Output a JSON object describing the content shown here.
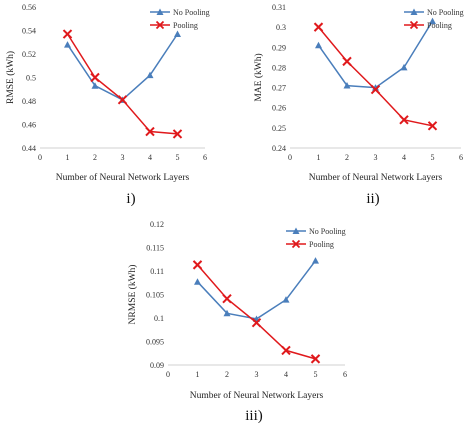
{
  "chart_data": [
    {
      "type": "line",
      "panel_label": "i)",
      "xlabel": "Number of Neural Network Layers",
      "ylabel": "RMSE (kWh)",
      "xlim": [
        0,
        6
      ],
      "ylim": [
        0.44,
        0.56
      ],
      "x_ticks": [
        "0",
        "1",
        "2",
        "3",
        "4",
        "5",
        "6"
      ],
      "y_ticks": [
        "0.44",
        "0.46",
        "0.48",
        "0.5",
        "0.52",
        "0.54",
        "0.56"
      ],
      "legend_position": "top-right",
      "x": [
        1,
        2,
        3,
        4,
        5
      ],
      "series": [
        {
          "name": "No Pooling",
          "values": [
            0.528,
            0.493,
            0.481,
            0.502,
            0.537
          ],
          "color": "#4a7ebb",
          "marker": "triangle"
        },
        {
          "name": "Pooling",
          "values": [
            0.537,
            0.5,
            0.481,
            0.454,
            0.452
          ],
          "color": "#e0191c",
          "marker": "x"
        }
      ]
    },
    {
      "type": "line",
      "panel_label": "ii)",
      "xlabel": "Number of Neural Network Layers",
      "ylabel": "MAE (kWh)",
      "xlim": [
        0,
        6
      ],
      "ylim": [
        0.24,
        0.31
      ],
      "x_ticks": [
        "0",
        "1",
        "2",
        "3",
        "4",
        "5",
        "6"
      ],
      "y_ticks": [
        "0.24",
        "0.25",
        "0.26",
        "0.27",
        "0.28",
        "0.29",
        "0.3",
        "0.31"
      ],
      "legend_position": "top-right",
      "x": [
        1,
        2,
        3,
        4,
        5
      ],
      "series": [
        {
          "name": "No Pooling",
          "values": [
            0.291,
            0.271,
            0.27,
            0.28,
            0.303
          ],
          "color": "#4a7ebb",
          "marker": "triangle"
        },
        {
          "name": "Pooling",
          "values": [
            0.3,
            0.283,
            0.269,
            0.254,
            0.251
          ],
          "color": "#e0191c",
          "marker": "x"
        }
      ]
    },
    {
      "type": "line",
      "panel_label": "iii)",
      "xlabel": "Number of Neural Network Layers",
      "ylabel": "NRMSE (kWh)",
      "xlim": [
        0,
        6
      ],
      "ylim": [
        0.09,
        0.12
      ],
      "x_ticks": [
        "0",
        "1",
        "2",
        "3",
        "4",
        "5",
        "6"
      ],
      "y_ticks": [
        "0.09",
        "0.095",
        "0.1",
        "0.105",
        "0.11",
        "0.115",
        "0.12"
      ],
      "legend_position": "top-right",
      "x": [
        1,
        2,
        3,
        4,
        5
      ],
      "series": [
        {
          "name": "No Pooling",
          "values": [
            0.1077,
            0.101,
            0.0998,
            0.1039,
            0.1122
          ],
          "color": "#4a7ebb",
          "marker": "triangle"
        },
        {
          "name": "Pooling",
          "values": [
            0.1113,
            0.1041,
            0.099,
            0.0931,
            0.0913
          ],
          "color": "#e0191c",
          "marker": "x"
        }
      ]
    }
  ]
}
